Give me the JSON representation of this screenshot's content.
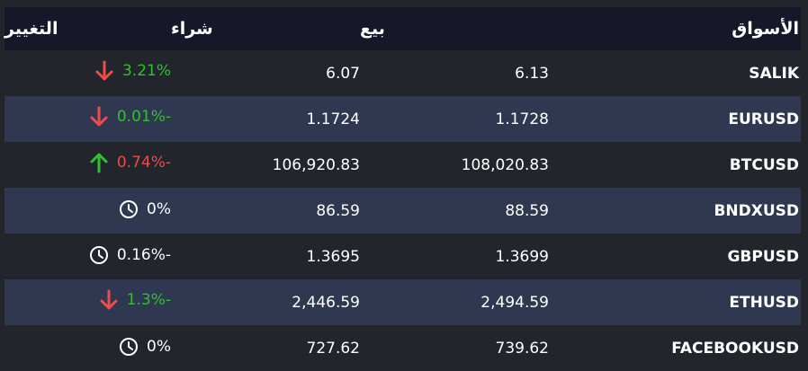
{
  "headers": {
    "market": "الأسواق",
    "sell": "بيع",
    "buy": "شراء",
    "change": "التغيير"
  },
  "colors": {
    "positive": "#2fc12f",
    "negative": "#f04b4b",
    "header_bg": "#161829",
    "alt_row_bg": "#2f3850",
    "bg": "#22252c"
  },
  "rows": [
    {
      "market": "SALIK",
      "sell": "6.13",
      "buy": "6.07",
      "change": "3.21%",
      "change_color": "positive",
      "icon": "arrow-down-icon"
    },
    {
      "market": "EURUSD",
      "sell": "1.1728",
      "buy": "1.1724",
      "change": "0.01%-",
      "change_color": "positive",
      "icon": "arrow-down-icon"
    },
    {
      "market": "BTCUSD",
      "sell": "108,020.83",
      "buy": "106,920.83",
      "change": "0.74%-",
      "change_color": "negative",
      "icon": "arrow-up-icon"
    },
    {
      "market": "BNDXUSD",
      "sell": "88.59",
      "buy": "86.59",
      "change": "0%",
      "change_color": "neutral",
      "icon": "clock-icon"
    },
    {
      "market": "GBPUSD",
      "sell": "1.3699",
      "buy": "1.3695",
      "change": "0.16%-",
      "change_color": "neutral",
      "icon": "clock-icon"
    },
    {
      "market": "ETHUSD",
      "sell": "2,494.59",
      "buy": "2,446.59",
      "change": "1.3%-",
      "change_color": "positive",
      "icon": "arrow-down-icon"
    },
    {
      "market": "FACEBOOKUSD",
      "sell": "739.62",
      "buy": "727.62",
      "change": "0%",
      "change_color": "neutral",
      "icon": "clock-icon"
    }
  ]
}
